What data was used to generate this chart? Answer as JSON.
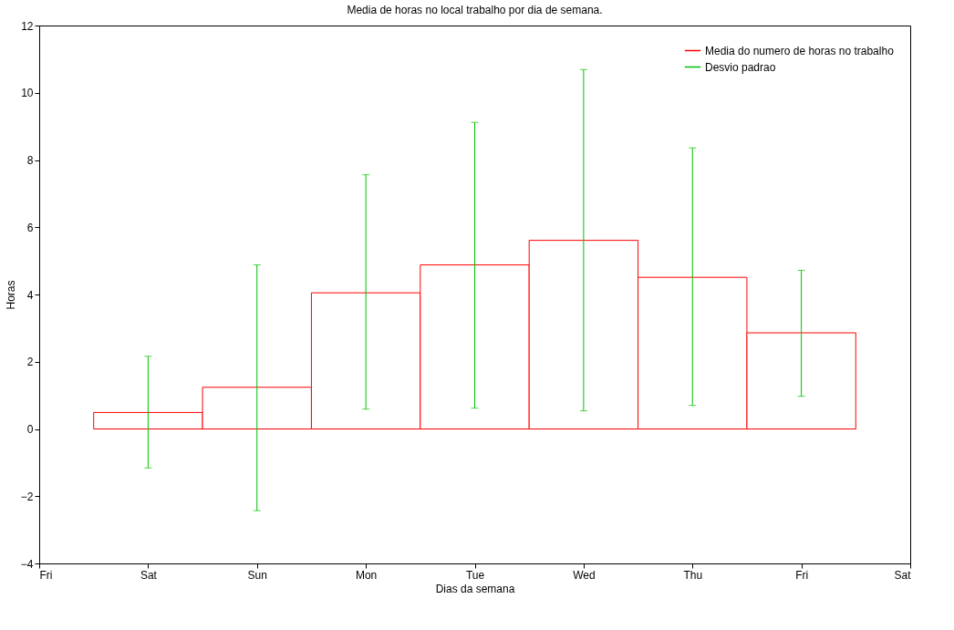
{
  "chart_data": {
    "type": "bar",
    "title": "Media de horas no local trabalho por dia de semana.",
    "xlabel": "Dias da semana",
    "ylabel": "Horas",
    "categories": [
      "Fri",
      "Sat",
      "Sun",
      "Mon",
      "Tue",
      "Wed",
      "Thu",
      "Fri",
      "Sat"
    ],
    "series": [
      {
        "name": "Media do numero de horas no trabalho",
        "color": "#ff0000",
        "values": [
          null,
          0.49,
          1.24,
          4.05,
          4.88,
          5.61,
          4.51,
          2.86,
          null
        ],
        "errors": [
          null,
          [
            -1.16,
            2.16
          ],
          [
            -2.43,
            4.88
          ],
          [
            0.59,
            7.56
          ],
          [
            0.62,
            9.12
          ],
          [
            0.54,
            10.69
          ],
          [
            0.7,
            8.36
          ],
          [
            0.97,
            4.72
          ],
          null
        ]
      }
    ],
    "annotations": [
      "Desvio padrao"
    ],
    "ylim": [
      -4,
      12
    ],
    "yticks": [
      -4,
      -2,
      0,
      2,
      4,
      6,
      8,
      10,
      12
    ],
    "grid": false,
    "legend": "top right"
  }
}
